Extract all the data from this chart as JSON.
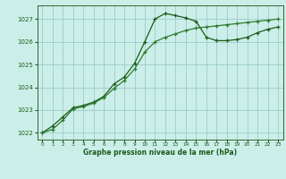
{
  "xlabel": "Graphe pression niveau de la mer (hPa)",
  "bg_color": "#cceee8",
  "grid_color": "#99cccc",
  "line_color": "#1a5c1a",
  "line_color2": "#2d7a2d",
  "x_ticks": [
    0,
    1,
    2,
    3,
    4,
    5,
    6,
    7,
    8,
    9,
    10,
    11,
    12,
    13,
    14,
    15,
    16,
    17,
    18,
    19,
    20,
    21,
    22,
    23
  ],
  "ylim": [
    1021.7,
    1027.6
  ],
  "xlim": [
    -0.5,
    23.5
  ],
  "yticks": [
    1022,
    1023,
    1024,
    1025,
    1026,
    1027
  ],
  "series1_x": [
    0,
    1,
    2,
    3,
    4,
    5,
    6,
    7,
    8,
    9,
    10,
    11,
    12,
    13,
    14,
    15,
    16,
    17,
    18,
    19,
    20,
    21,
    22,
    23
  ],
  "series1_y": [
    1022.0,
    1022.3,
    1022.7,
    1023.1,
    1023.2,
    1023.35,
    1023.6,
    1024.15,
    1024.45,
    1025.05,
    1026.0,
    1027.0,
    1027.25,
    1027.15,
    1027.05,
    1026.9,
    1026.2,
    1026.05,
    1026.05,
    1026.1,
    1026.2,
    1026.4,
    1026.55,
    1026.65
  ],
  "series2_x": [
    0,
    1,
    2,
    3,
    4,
    5,
    6,
    7,
    8,
    9,
    10,
    11,
    12,
    13,
    14,
    15,
    16,
    17,
    18,
    19,
    20,
    21,
    22,
    23
  ],
  "series2_y": [
    1022.0,
    1022.15,
    1022.55,
    1023.05,
    1023.15,
    1023.3,
    1023.55,
    1023.95,
    1024.3,
    1024.8,
    1025.55,
    1026.0,
    1026.2,
    1026.35,
    1026.5,
    1026.6,
    1026.65,
    1026.7,
    1026.75,
    1026.8,
    1026.85,
    1026.9,
    1026.95,
    1027.0
  ]
}
